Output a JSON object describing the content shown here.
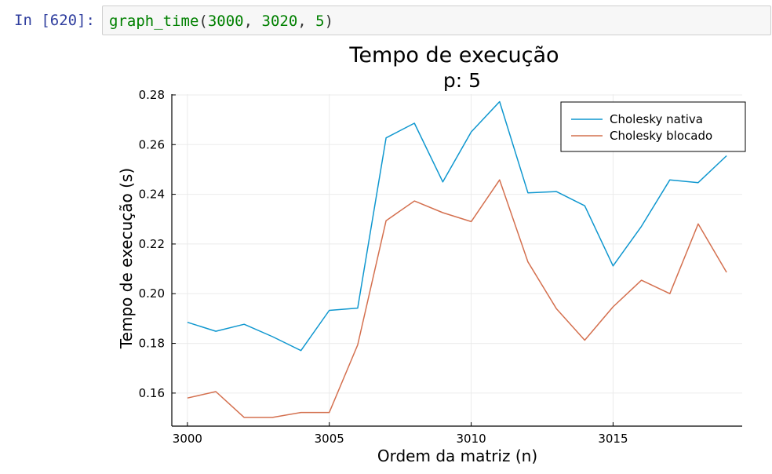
{
  "cell": {
    "prompt": "In [620]:",
    "code": {
      "function": "graph_time",
      "open": "(",
      "arg1": "3000",
      "arg2": "3020",
      "arg3": "5",
      "sep": ", ",
      "close": ")"
    }
  },
  "colors": {
    "series1": "#0f97cf",
    "series2": "#d4704f",
    "grid": "#ebebeb",
    "prompt": "#303f9f",
    "code_green": "#008000"
  },
  "chart_data": {
    "type": "line",
    "title": "Tempo de execução",
    "subtitle": "p: 5",
    "xlabel": "Ordem da matriz (n)",
    "ylabel": "Tempo de execução (s)",
    "xlim": [
      2999.45,
      3019.55
    ],
    "ylim": [
      0.1467,
      0.2803
    ],
    "xticks": [
      3000,
      3005,
      3010,
      3015
    ],
    "xtick_labels": [
      "3000",
      "3005",
      "3010",
      "3015"
    ],
    "yticks": [
      0.16,
      0.18,
      0.2,
      0.22,
      0.24,
      0.26,
      0.28
    ],
    "ytick_labels": [
      "0.16",
      "0.18",
      "0.20",
      "0.22",
      "0.24",
      "0.26",
      "0.28"
    ],
    "grid": true,
    "legend_position": "top-right",
    "x": [
      3000,
      3001,
      3002,
      3003,
      3004,
      3005,
      3006,
      3007,
      3008,
      3009,
      3010,
      3011,
      3012,
      3013,
      3014,
      3015,
      3016,
      3017,
      3018,
      3019
    ],
    "series": [
      {
        "name": "Cholesky nativa",
        "values": [
          0.1885,
          0.1849,
          0.1877,
          0.1827,
          0.1771,
          0.1933,
          0.1942,
          0.2627,
          0.2686,
          0.245,
          0.2651,
          0.2773,
          0.2406,
          0.2411,
          0.2354,
          0.2112,
          0.2271,
          0.2458,
          0.2447,
          0.2555
        ]
      },
      {
        "name": "Cholesky blocado",
        "values": [
          0.158,
          0.1606,
          0.1502,
          0.1502,
          0.1522,
          0.1522,
          0.1794,
          0.2294,
          0.2373,
          0.2326,
          0.229,
          0.2458,
          0.2128,
          0.194,
          0.1813,
          0.1947,
          0.2054,
          0.2,
          0.2281,
          0.2086
        ]
      }
    ]
  }
}
